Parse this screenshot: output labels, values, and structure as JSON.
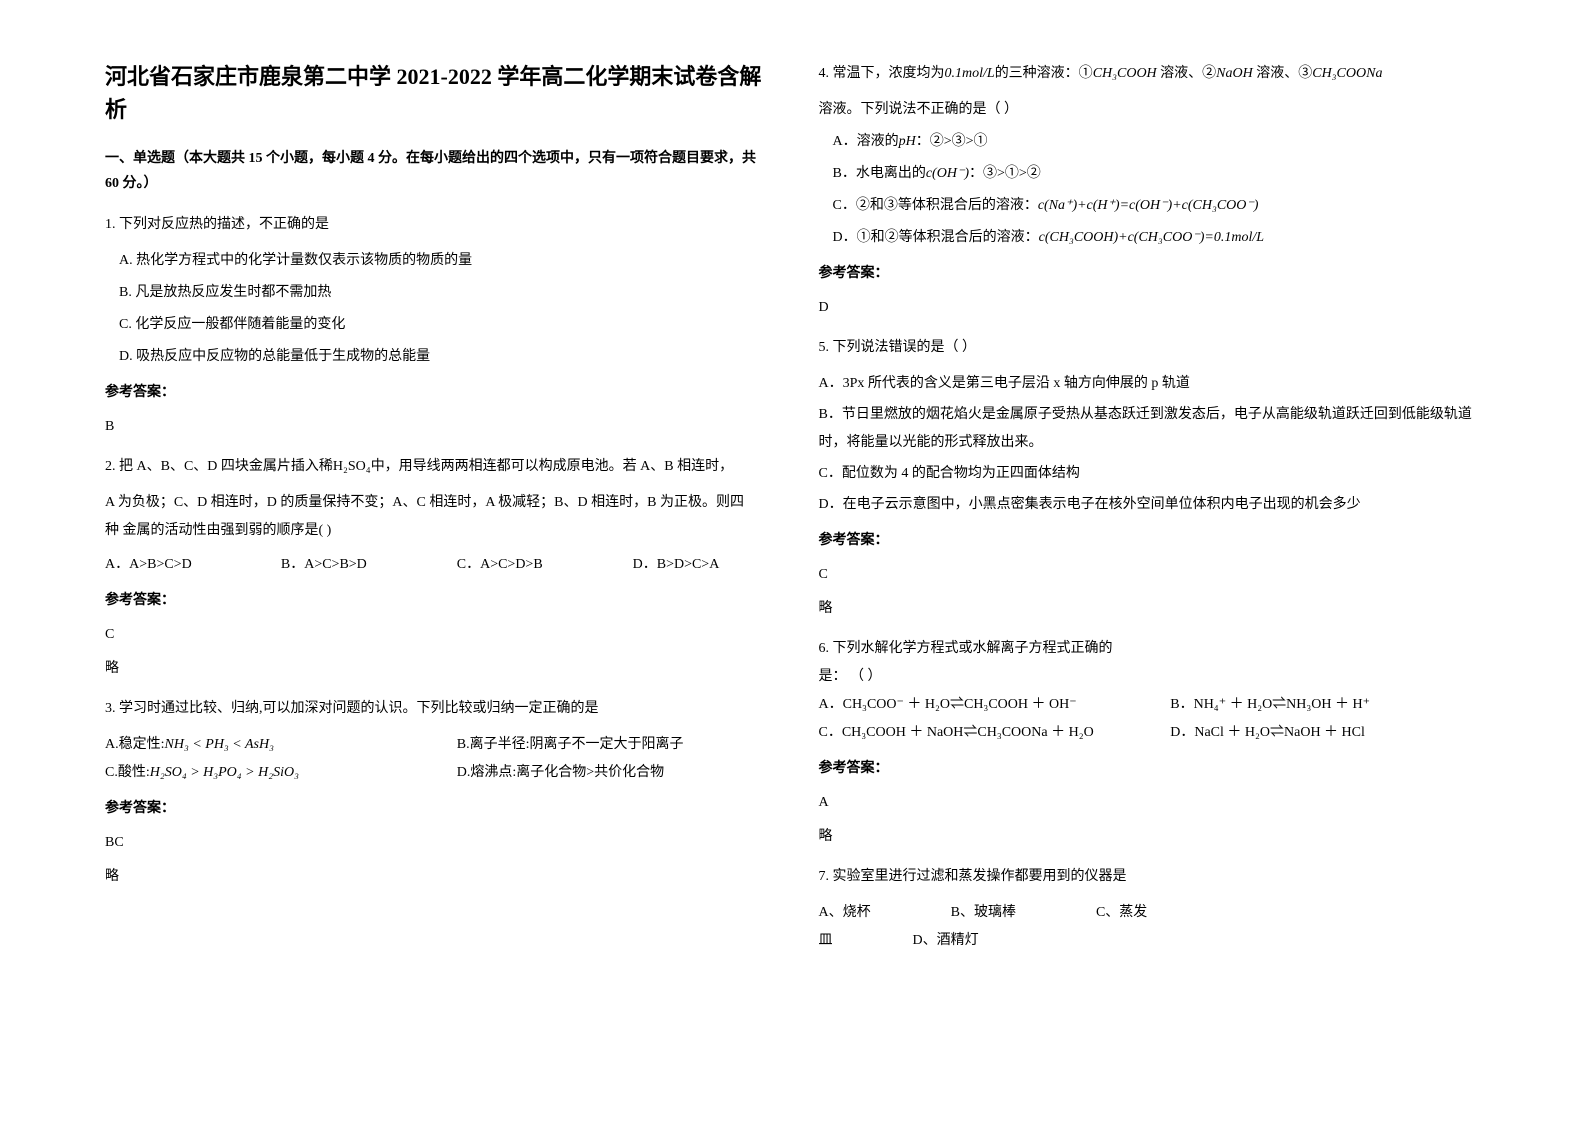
{
  "title": "河北省石家庄市鹿泉第二中学 2021-2022 学年高二化学期末试卷含解析",
  "section1_desc": "一、单选题（本大题共 15 个小题，每小题 4 分。在每小题给出的四个选项中，只有一项符合题目要求，共 60 分。）",
  "q1": {
    "title": "1. 下列对反应热的描述，不正确的是",
    "a": "A. 热化学方程式中的化学计量数仅表示该物质的物质的量",
    "b": "B. 凡是放热反应发生时都不需加热",
    "c": "C. 化学反应一般都伴随着能量的变化",
    "d": "D. 吸热反应中反应物的总能量低于生成物的总能量",
    "ans_label": "参考答案：",
    "ans": "B"
  },
  "q2": {
    "title_pre": "2. 把 A、B、C、D 四块金属片插入稀",
    "title_mid": "H₂SO₄",
    "title_post": "中，用导线两两相连都可以构成原电池。若 A、B 相连时，",
    "line2": "A 为负极；C、D 相连时，D 的质量保持不变；A、C 相连时，A 极减轻；B、D 相连时，B 为正极。则四",
    "line3": "种 金属的活动性由强到弱的顺序是(          )",
    "a": "A．A>B>C>D",
    "b": "B．A>C>B>D",
    "c": "C．A>C>D>B",
    "d": "D．B>D>C>A",
    "ans_label": "参考答案：",
    "ans": "C",
    "note": "略"
  },
  "q3": {
    "title": "3. 学习时通过比较、归纳,可以加深对问题的认识。下列比较或归纳一定正确的是",
    "a_pre": "A.稳定性:",
    "a_formula": "NH₃ < PH₃ < AsH₃",
    "b": "B.离子半径:阴离子不一定大于阳离子",
    "c_pre": "C.酸性:",
    "c_formula": "H₂SO₄ > H₃PO₄ > H₂SiO₃",
    "d": "D.熔沸点:离子化合物>共价化合物",
    "ans_label": "参考答案：",
    "ans": "BC",
    "note": "略"
  },
  "q4": {
    "title_pre": "4. 常温下，浓度均为",
    "conc": "0.1mol/L",
    "title_mid": "的三种溶液：①",
    "s1": "CH₃COOH",
    "mid2": " 溶液、②",
    "s2": "NaOH",
    "mid3": " 溶液、③",
    "s3": "CH₃COONa",
    "line2": "溶液。下列说法不正确的是（          ）",
    "a_pre": "A．溶液的",
    "a_var": "pH",
    "a_post": "：②>③>①",
    "b_pre": "B．水电离出的",
    "b_var": "c(OH⁻)",
    "b_post": "：③>①>②",
    "c_pre": "C．②和③等体积混合后的溶液：",
    "c_formula": "c(Na⁺)+c(H⁺)=c(OH⁻)+c(CH₃COO⁻)",
    "d_pre": "D．①和②等体积混合后的溶液：",
    "d_formula": "c(CH₃COOH)+c(CH₃COO⁻)=0.1mol/L",
    "ans_label": "参考答案：",
    "ans": "D"
  },
  "q5": {
    "title": "5. 下列说法错误的是（          ）",
    "a": "A．3Px 所代表的含义是第三电子层沿 x 轴方向伸展的 p 轨道",
    "b": "B．节日里燃放的烟花焰火是金属原子受热从基态跃迁到激发态后，电子从高能级轨道跃迁回到低能级轨道时，将能量以光能的形式释放出来。",
    "c": "C．配位数为 4 的配合物均为正四面体结构",
    "d": "D．在电子云示意图中，小黑点密集表示电子在核外空间单位体积内电子出现的机会多少",
    "ans_label": "参考答案：",
    "ans": "C",
    "note": "略"
  },
  "q6": {
    "title": "6. 下列水解化学方程式或水解离子方程式正确的",
    "title2": "是：                                                （       ）",
    "a": "A．CH₃COO⁻ ＋ H₂O⇌CH₃COOH ＋ OH⁻",
    "b": "B．NH₄⁺ ＋ H₂O⇌NH₃OH ＋ H⁺",
    "c": "C．CH₃COOH ＋ NaOH⇌CH₃COONa ＋ H₂O",
    "d": "D．NaCl ＋ H₂O⇌NaOH ＋ HCl",
    "ans_label": "参考答案：",
    "ans": "A",
    "note": "略"
  },
  "q7": {
    "title": "7. 实验室里进行过滤和蒸发操作都要用到的仪器是",
    "a": "A、烧杯",
    "b": "B、玻璃棒",
    "c": "C、蒸发",
    "a2": "皿",
    "d": "D、酒精灯"
  }
}
